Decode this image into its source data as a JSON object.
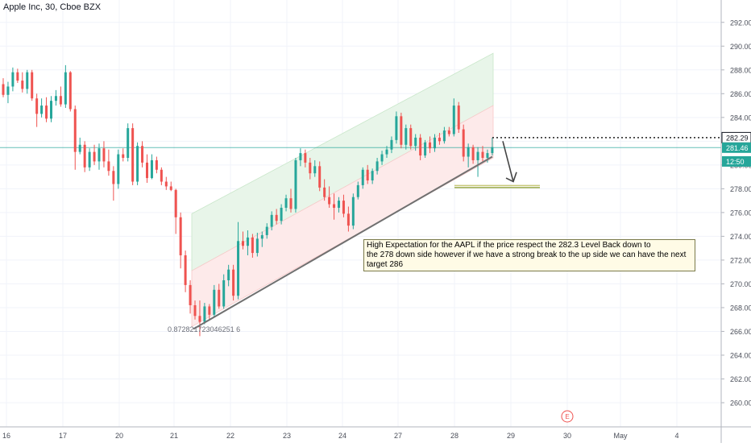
{
  "header": {
    "symbol": "Apple Inc, 30, Cboe BZX"
  },
  "annotation": {
    "line1": "High Expectation for the AAPL if the price respect the 282.3 Level Back down to",
    "line2": "the 278 down side however if we have a strong break to the up side we can have the next target 286"
  },
  "channel_label": "0.872821723046251 6",
  "price_tags": {
    "last": "282.29",
    "current": "281.46",
    "countdown": "12:50"
  },
  "event_marker": "E",
  "colors": {
    "up": "#26a69a",
    "down": "#ef5350",
    "channel_upper_fill": "#e8f5e9",
    "channel_lower_fill": "#fdeaea",
    "trendline": "#707070",
    "price_line": "#26a69a",
    "target_line": "#c8c87a"
  },
  "chart_data": {
    "type": "candlestick",
    "title": "",
    "x_ticks": [
      "16",
      "17",
      "20",
      "21",
      "22",
      "23",
      "24",
      "27",
      "28",
      "29",
      "30",
      "May",
      "4"
    ],
    "y_ticks": [
      260,
      262,
      264,
      266,
      268,
      270,
      272,
      274,
      276,
      278,
      280,
      282,
      284,
      286,
      288,
      290,
      292
    ],
    "ylim": [
      258.6,
      293.6
    ],
    "grid": true,
    "levels": {
      "resistance": 282.3,
      "target_down": 278.2,
      "target_up": 286
    },
    "candles": [
      [
        286.8,
        287.3,
        285.7,
        285.9
      ],
      [
        285.9,
        287.0,
        285.2,
        286.6
      ],
      [
        286.6,
        288.2,
        286.2,
        287.8
      ],
      [
        287.8,
        288.1,
        286.9,
        287.1
      ],
      [
        287.1,
        287.8,
        286.1,
        286.4
      ],
      [
        286.4,
        288.0,
        286.0,
        287.8
      ],
      [
        287.8,
        288.0,
        285.4,
        285.6
      ],
      [
        285.6,
        286.0,
        283.2,
        284.3
      ],
      [
        284.3,
        285.6,
        284.0,
        285.0
      ],
      [
        285.0,
        285.7,
        283.6,
        283.9
      ],
      [
        283.9,
        285.8,
        283.6,
        285.4
      ],
      [
        285.4,
        286.3,
        285.0,
        285.8
      ],
      [
        285.8,
        286.6,
        284.9,
        285.1
      ],
      [
        285.1,
        288.4,
        284.8,
        287.8
      ],
      [
        287.8,
        287.9,
        284.5,
        284.7
      ],
      [
        284.7,
        285.0,
        279.6,
        281.1
      ],
      [
        281.1,
        282.3,
        280.9,
        281.7
      ],
      [
        281.7,
        282.0,
        279.4,
        279.8
      ],
      [
        279.8,
        281.4,
        279.5,
        281.1
      ],
      [
        281.1,
        281.7,
        280.0,
        280.3
      ],
      [
        280.3,
        281.8,
        279.6,
        281.4
      ],
      [
        281.4,
        282.0,
        279.8,
        280.3
      ],
      [
        280.3,
        281.3,
        279.1,
        279.5
      ],
      [
        279.5,
        279.9,
        277.0,
        278.4
      ],
      [
        278.4,
        281.3,
        278.0,
        280.9
      ],
      [
        280.9,
        281.4,
        280.3,
        280.6
      ],
      [
        280.6,
        283.5,
        280.3,
        283.1
      ],
      [
        283.1,
        283.5,
        278.3,
        278.6
      ],
      [
        278.6,
        281.9,
        278.3,
        281.6
      ],
      [
        281.6,
        282.0,
        279.8,
        280.2
      ],
      [
        280.2,
        280.9,
        278.5,
        278.9
      ],
      [
        278.9,
        280.9,
        278.8,
        280.4
      ],
      [
        280.4,
        280.7,
        279.3,
        279.6
      ],
      [
        279.6,
        279.8,
        278.3,
        278.6
      ],
      [
        278.6,
        279.0,
        277.9,
        278.2
      ],
      [
        278.2,
        278.6,
        277.8,
        277.9
      ],
      [
        277.9,
        278.0,
        274.2,
        275.6
      ],
      [
        275.6,
        276.0,
        271.3,
        272.4
      ],
      [
        272.4,
        272.8,
        269.3,
        269.9
      ],
      [
        269.9,
        270.3,
        267.5,
        268.2
      ],
      [
        268.2,
        268.6,
        267.0,
        267.3
      ],
      [
        267.3,
        268.6,
        265.6,
        266.8
      ],
      [
        266.8,
        268.4,
        266.6,
        268.1
      ],
      [
        268.1,
        268.3,
        266.9,
        267.4
      ],
      [
        267.4,
        269.9,
        267.2,
        269.5
      ],
      [
        269.5,
        270.0,
        267.9,
        268.1
      ],
      [
        268.1,
        270.8,
        267.9,
        270.3
      ],
      [
        270.3,
        271.6,
        269.8,
        271.2
      ],
      [
        271.2,
        271.6,
        268.6,
        269.0
      ],
      [
        269.0,
        275.2,
        268.7,
        273.6
      ],
      [
        273.6,
        274.4,
        272.9,
        273.2
      ],
      [
        273.2,
        274.5,
        272.4,
        273.9
      ],
      [
        273.9,
        274.2,
        272.2,
        272.6
      ],
      [
        272.6,
        274.3,
        272.3,
        273.8
      ],
      [
        273.8,
        274.4,
        273.1,
        274.1
      ],
      [
        274.1,
        275.1,
        273.8,
        274.8
      ],
      [
        274.8,
        276.1,
        274.5,
        275.8
      ],
      [
        275.8,
        276.3,
        275.0,
        275.3
      ],
      [
        275.3,
        276.7,
        275.0,
        276.4
      ],
      [
        276.4,
        277.5,
        276.1,
        277.2
      ],
      [
        277.2,
        278.0,
        276.0,
        276.3
      ],
      [
        276.3,
        280.6,
        276.0,
        280.4
      ],
      [
        280.4,
        281.4,
        279.9,
        281.0
      ],
      [
        281.0,
        281.3,
        279.8,
        280.2
      ],
      [
        280.2,
        280.6,
        278.8,
        279.3
      ],
      [
        279.3,
        280.4,
        279.0,
        279.9
      ],
      [
        279.9,
        280.3,
        277.8,
        278.1
      ],
      [
        278.1,
        278.8,
        277.0,
        277.3
      ],
      [
        277.3,
        278.2,
        276.4,
        276.7
      ],
      [
        276.7,
        277.6,
        275.4,
        276.4
      ],
      [
        276.4,
        277.3,
        276.0,
        277.0
      ],
      [
        277.0,
        277.5,
        275.6,
        275.9
      ],
      [
        275.9,
        276.5,
        274.4,
        274.9
      ],
      [
        274.9,
        277.6,
        274.6,
        277.3
      ],
      [
        277.3,
        278.6,
        277.1,
        278.3
      ],
      [
        278.3,
        279.8,
        278.0,
        279.6
      ],
      [
        279.6,
        280.0,
        278.4,
        278.7
      ],
      [
        278.7,
        279.7,
        278.4,
        279.5
      ],
      [
        279.5,
        280.6,
        279.2,
        280.3
      ],
      [
        280.3,
        281.2,
        280.0,
        280.9
      ],
      [
        280.9,
        281.6,
        280.6,
        281.3
      ],
      [
        281.3,
        282.4,
        281.0,
        282.1
      ],
      [
        282.1,
        284.5,
        281.8,
        284.1
      ],
      [
        284.1,
        284.4,
        281.4,
        281.7
      ],
      [
        281.7,
        283.4,
        281.3,
        283.1
      ],
      [
        283.1,
        283.4,
        281.3,
        281.6
      ],
      [
        281.6,
        282.6,
        281.2,
        282.3
      ],
      [
        282.3,
        282.6,
        280.4,
        280.8
      ],
      [
        280.8,
        282.1,
        280.6,
        281.9
      ],
      [
        281.9,
        282.4,
        281.0,
        281.4
      ],
      [
        281.4,
        282.6,
        281.1,
        282.3
      ],
      [
        282.3,
        282.7,
        281.7,
        282.0
      ],
      [
        282.0,
        283.2,
        281.8,
        282.9
      ],
      [
        282.9,
        283.2,
        282.4,
        282.6
      ],
      [
        282.6,
        285.6,
        282.4,
        285.0
      ],
      [
        285.0,
        285.3,
        282.7,
        283.0
      ],
      [
        283.0,
        283.4,
        280.3,
        280.7
      ],
      [
        280.7,
        281.8,
        279.8,
        281.5
      ],
      [
        281.5,
        281.7,
        280.1,
        280.4
      ],
      [
        280.4,
        281.5,
        279.0,
        281.1
      ],
      [
        281.1,
        281.6,
        280.3,
        280.6
      ],
      [
        280.6,
        281.3,
        280.2,
        281.0
      ],
      [
        281.0,
        282.3,
        280.8,
        281.5
      ]
    ]
  }
}
